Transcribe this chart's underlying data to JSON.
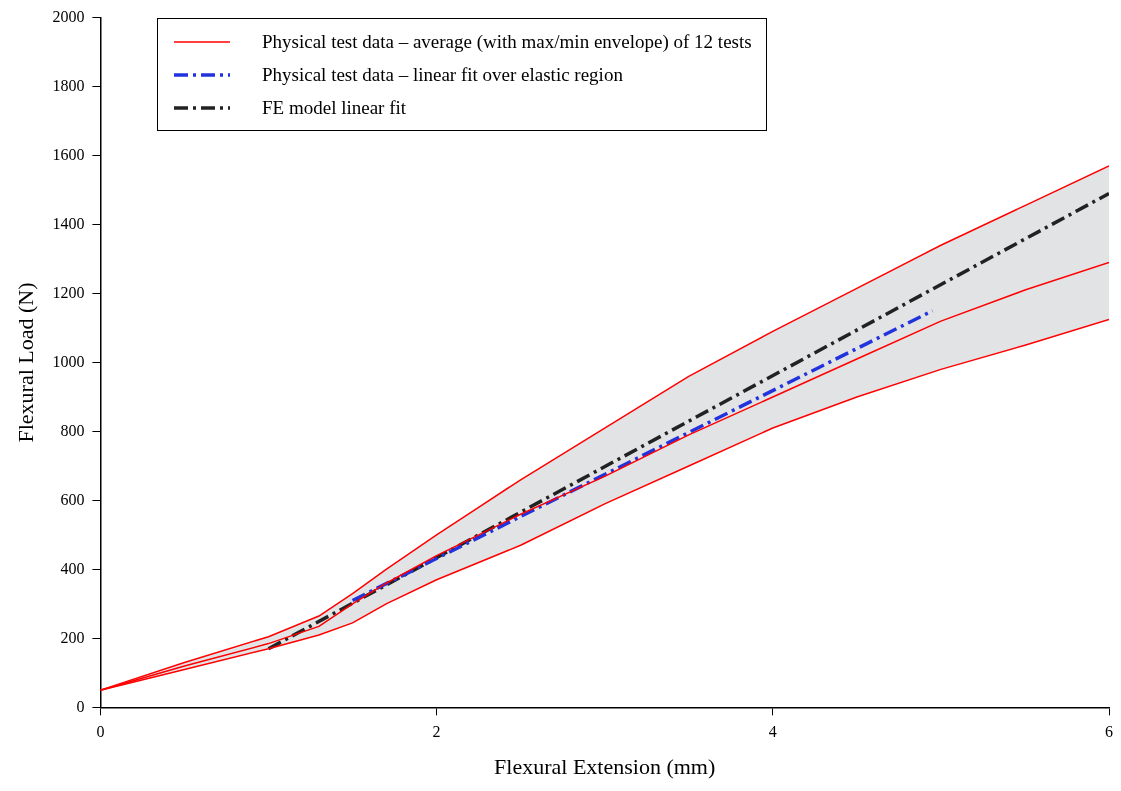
{
  "chart_data": {
    "type": "line",
    "xlabel": "Flexural Extension (mm)",
    "ylabel": "Flexural Load (N)",
    "xlim": [
      0,
      6
    ],
    "xticks": [
      0,
      2,
      4,
      6
    ],
    "ylim": [
      0,
      2000
    ],
    "yticks": [
      0,
      200,
      400,
      600,
      800,
      1000,
      1200,
      1400,
      1600,
      1800,
      2000
    ],
    "grid": false,
    "legend": "top left",
    "marker": "none",
    "series": [
      {
        "name": "Physical test data – average (with max/min envelope) of 12 tests",
        "color": "#ff0000",
        "line_style": "solid",
        "x": [
          0,
          0.5,
          1,
          1.3,
          1.5,
          1.7,
          2,
          2.5,
          3,
          3.5,
          4,
          4.5,
          5,
          5.5,
          6
        ],
        "values": [
          50,
          120,
          185,
          235,
          300,
          360,
          440,
          560,
          670,
          790,
          900,
          1010,
          1120,
          1210,
          1290
        ],
        "lower": [
          50,
          110,
          170,
          210,
          245,
          300,
          370,
          470,
          590,
          700,
          810,
          900,
          980,
          1050,
          1125
        ],
        "upper": [
          50,
          130,
          205,
          265,
          330,
          400,
          500,
          660,
          810,
          960,
          1090,
          1215,
          1340,
          1455,
          1570
        ]
      },
      {
        "color": "#ff0000",
        "line_style": "solid",
        "x": [
          0,
          0.5,
          1,
          1.3,
          1.5,
          1.7,
          2,
          2.5,
          3,
          3.5,
          4,
          4.5,
          5,
          5.5,
          6
        ],
        "values": [
          50,
          110,
          170,
          210,
          245,
          300,
          370,
          470,
          590,
          700,
          810,
          900,
          980,
          1050,
          1125
        ]
      },
      {
        "color": "#ff0000",
        "line_style": "solid",
        "x": [
          0,
          0.5,
          1,
          1.3,
          1.5,
          1.7,
          2,
          2.5,
          3,
          3.5,
          4,
          4.5,
          5,
          5.5,
          6
        ],
        "values": [
          50,
          130,
          205,
          265,
          330,
          400,
          500,
          660,
          810,
          960,
          1090,
          1215,
          1340,
          1455,
          1570
        ]
      },
      {
        "name": "Physical test data – linear fit over elastic region",
        "color": "#2233dd",
        "line_style": "dashed",
        "x": [
          1.5,
          4.95
        ],
        "values": [
          310,
          1150
        ]
      },
      {
        "name": "FE model linear fit",
        "color": "#222222",
        "line_style": "dashed",
        "x": [
          1,
          6
        ],
        "values": [
          170,
          1490
        ]
      }
    ]
  }
}
